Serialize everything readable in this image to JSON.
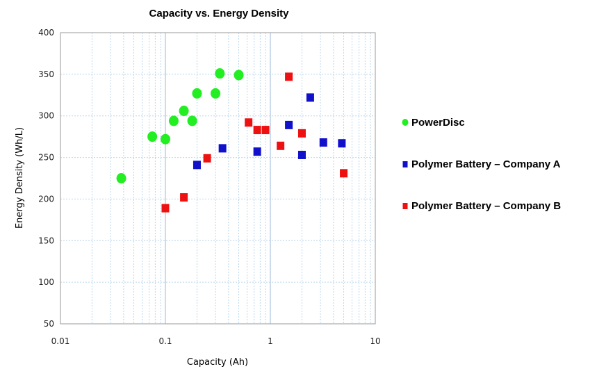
{
  "chart_data": {
    "type": "scatter",
    "title": "Capacity vs. Energy Density",
    "xlabel": "Capacity (Ah)",
    "ylabel": "Energy Density (Wh/L)",
    "xscale": "log",
    "xlim": [
      0.01,
      10
    ],
    "ylim": [
      50,
      400
    ],
    "xticks": [
      {
        "value": 0.01,
        "label": "0.01"
      },
      {
        "value": 0.1,
        "label": "0.1"
      },
      {
        "value": 1,
        "label": "1"
      },
      {
        "value": 10,
        "label": "10"
      }
    ],
    "yticks": [
      {
        "value": 50,
        "label": "50"
      },
      {
        "value": 100,
        "label": "100"
      },
      {
        "value": 150,
        "label": "150"
      },
      {
        "value": 200,
        "label": "200"
      },
      {
        "value": 250,
        "label": "250"
      },
      {
        "value": 300,
        "label": "300"
      },
      {
        "value": 350,
        "label": "350"
      },
      {
        "value": 400,
        "label": "400"
      }
    ],
    "grid": true,
    "legend_position": "right",
    "series": [
      {
        "name": "PowerDisc",
        "marker": "circle",
        "color": "#22ee22",
        "x": [
          0.038,
          0.075,
          0.1,
          0.12,
          0.15,
          0.18,
          0.2,
          0.3,
          0.33,
          0.5
        ],
        "y": [
          225,
          275,
          272,
          294,
          306,
          294,
          327,
          327,
          351,
          349
        ]
      },
      {
        "name": "Polymer Battery – Company A",
        "marker": "square",
        "color": "#1111cc",
        "x": [
          0.2,
          0.35,
          0.75,
          1.5,
          2.0,
          2.4,
          3.2,
          4.8
        ],
        "y": [
          241,
          261,
          257,
          289,
          253,
          322,
          268,
          267
        ]
      },
      {
        "name": "Polymer Battery – Company B",
        "marker": "square",
        "color": "#ee1111",
        "x": [
          0.1,
          0.15,
          0.25,
          0.62,
          0.75,
          0.9,
          1.25,
          1.5,
          2.0,
          5.0
        ],
        "y": [
          189,
          202,
          249,
          292,
          283,
          283,
          264,
          347,
          279,
          231
        ]
      }
    ]
  }
}
